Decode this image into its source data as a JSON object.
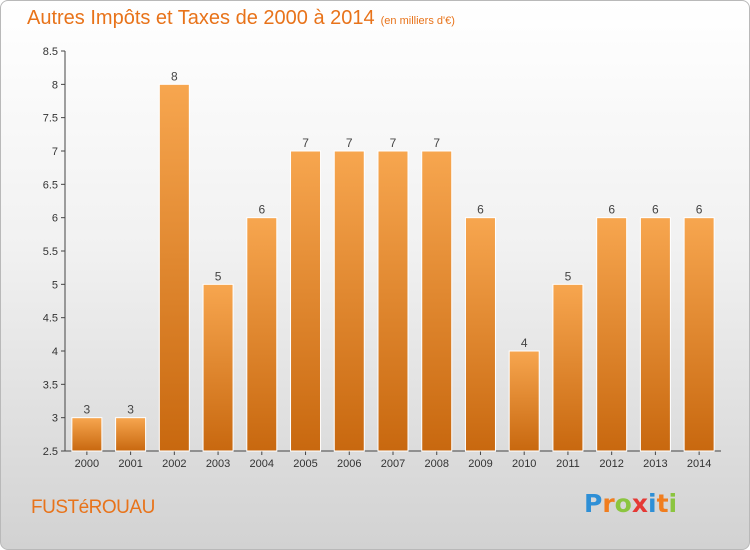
{
  "chart_data": {
    "type": "bar",
    "title": "Autres Impôts et Taxes de 2000 à 2014",
    "subtitle": "(en milliers d'€)",
    "categories": [
      "2000",
      "2001",
      "2002",
      "2003",
      "2004",
      "2005",
      "2006",
      "2007",
      "2008",
      "2009",
      "2010",
      "2011",
      "2012",
      "2013",
      "2014"
    ],
    "values": [
      3,
      3,
      8,
      5,
      6,
      7,
      7,
      7,
      7,
      6,
      4,
      5,
      6,
      6,
      6
    ],
    "ylim": [
      2.5,
      8.5
    ],
    "yticks": [
      2.5,
      3,
      3.5,
      4,
      4.5,
      5,
      5.5,
      6,
      6.5,
      7,
      7.5,
      8,
      8.5
    ],
    "ytick_labels": [
      "2.5",
      "3",
      "3.5",
      "4",
      "4.5",
      "5",
      "5.5",
      "6",
      "6.5",
      "7",
      "7.5",
      "8",
      "8.5"
    ],
    "grid": false,
    "data_labels": true,
    "bar_color_top": "#f7a64f",
    "bar_color_bottom": "#c8680f"
  },
  "commune": "FUSTéROUAU",
  "logo": {
    "letters": [
      "P",
      "r",
      "o",
      "x",
      "i",
      "t",
      "i"
    ],
    "colors": [
      "#2e8fd6",
      "#f07d1e",
      "#8bc53f",
      "#e53935",
      "#2e8fd6",
      "#f07d1e",
      "#8bc53f"
    ]
  }
}
